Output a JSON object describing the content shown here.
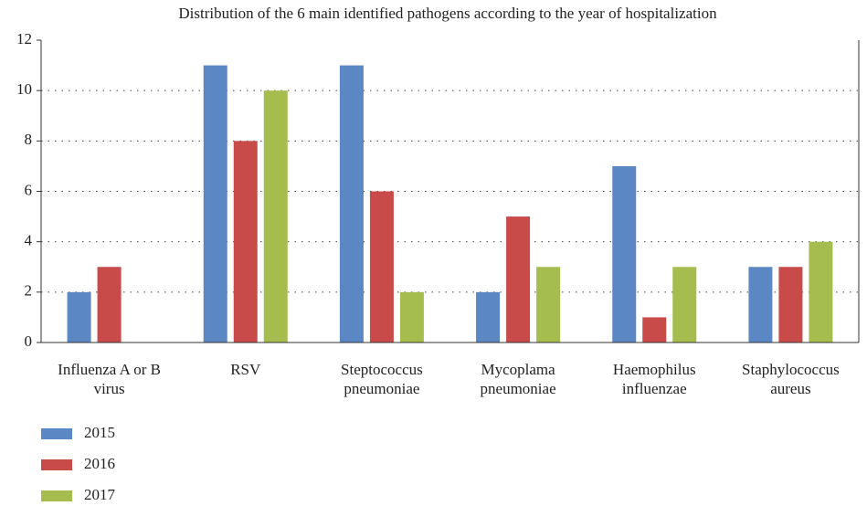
{
  "chart_data": {
    "type": "bar",
    "title": "Distribution of the 6 main identified pathogens according to the year of hospitalization",
    "categories": [
      "Influenza A or B virus",
      "RSV",
      "Steptococcus pneumoniae",
      "Mycoplama pneumoniae",
      "Haemophilus influenzae",
      "Staphylococcus aureus"
    ],
    "series": [
      {
        "name": "2015",
        "color": "#5b87c5",
        "values": [
          2,
          11,
          11,
          2,
          7,
          3
        ]
      },
      {
        "name": "2016",
        "color": "#c84b49",
        "values": [
          3,
          8,
          6,
          5,
          1,
          3
        ]
      },
      {
        "name": "2017",
        "color": "#a5bd4f",
        "values": [
          0,
          10,
          2,
          3,
          3,
          4
        ]
      }
    ],
    "ylim": [
      0,
      12
    ],
    "yticks": [
      0,
      2,
      4,
      6,
      8,
      10,
      12
    ],
    "grid": true,
    "legend": "bottom-left"
  }
}
